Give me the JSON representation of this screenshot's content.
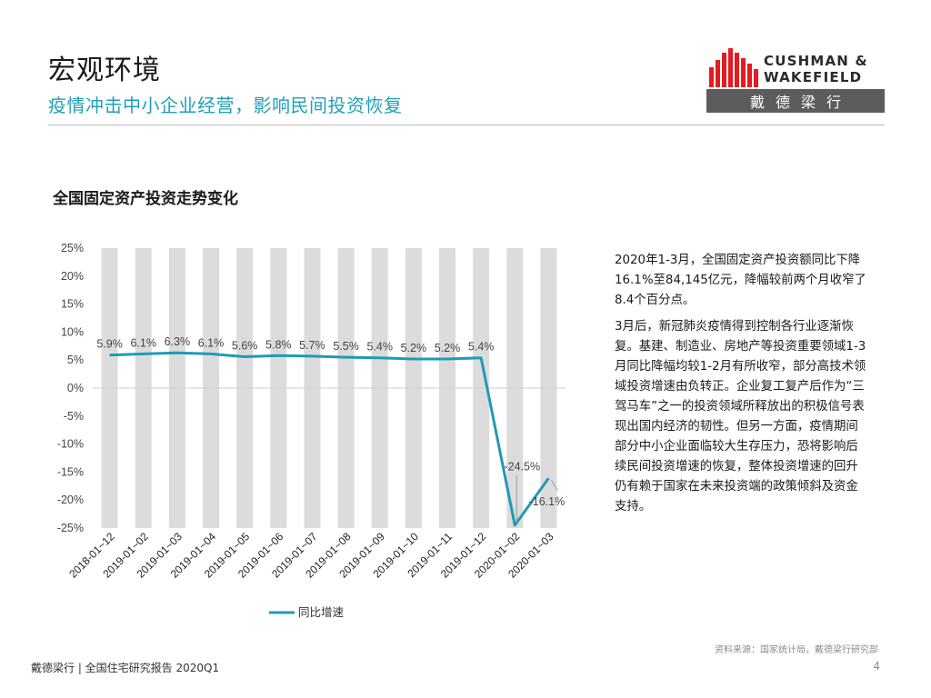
{
  "header": {
    "title": "宏观环境",
    "subtitle": "疫情冲击中小企业经营，影响民间投资恢复"
  },
  "logo": {
    "brand_line1": "CUSHMAN &",
    "brand_line2": "WAKEFIELD",
    "cn_name": "戴德梁行",
    "brand_color": "#e31b23"
  },
  "chart_title": "全国固定资产投资走势变化",
  "chart_data": {
    "type": "line",
    "title": "全国固定资产投资走势变化",
    "categories": [
      "2018-01~12",
      "2019-01~02",
      "2019-01~03",
      "2019-01~04",
      "2019-01~05",
      "2019-01~06",
      "2019-01~07",
      "2019-01~08",
      "2019-01~09",
      "2019-01~10",
      "2019-01~11",
      "2019-01~12",
      "2020-01~02",
      "2020-01~03"
    ],
    "series": [
      {
        "name": "同比增速",
        "values": [
          5.9,
          6.1,
          6.3,
          6.1,
          5.6,
          5.8,
          5.7,
          5.5,
          5.4,
          5.2,
          5.2,
          5.4,
          -24.5,
          -16.1
        ],
        "labels": [
          "5.9%",
          "6.1%",
          "6.3%",
          "6.1%",
          "5.6%",
          "5.8%",
          "5.7%",
          "5.5%",
          "5.4%",
          "5.2%",
          "5.2%",
          "5.4%",
          "-24.5%",
          "-16.1%"
        ],
        "color": "#1f9bb5"
      }
    ],
    "ylim": [
      -25,
      25
    ],
    "yticks": [
      "25%",
      "20%",
      "15%",
      "10%",
      "5%",
      "0%",
      "-5%",
      "-10%",
      "-15%",
      "-20%",
      "-25%"
    ],
    "ytick_values": [
      25,
      20,
      15,
      10,
      5,
      0,
      -5,
      -10,
      -15,
      -20,
      -25
    ],
    "background_bars": true,
    "bar_color": "#dcdcdc",
    "legend": "bottom-center"
  },
  "text_paragraphs": [
    "2020年1-3月，全国固定资产投资额同比下降16.1%至84,145亿元，降幅较前两个月收窄了8.4个百分点。",
    "3月后，新冠肺炎疫情得到控制各行业逐渐恢复。基建、制造业、房地产等投资重要领域1-3月同比降幅均较1-2月有所收窄，部分高技术领域投资增速由负转正。企业复工复产后作为“三驾马车”之一的投资领域所释放出的积极信号表现出国内经济的韧性。但另一方面，疫情期间部分中小企业面临较大生存压力，恐将影响后续民间投资增速的恢复，整体投资增速的回升仍有赖于国家在未来投资端的政策倾斜及资金支持。"
  ],
  "source": "资料来源：国家统计局，戴德梁行研究部",
  "footer": "戴德梁行 | 全国住宅研究报告 2020Q1",
  "page_number": "4"
}
